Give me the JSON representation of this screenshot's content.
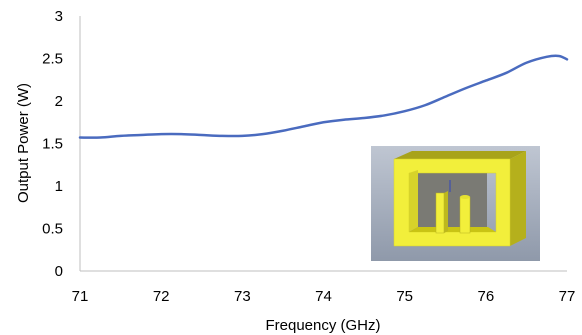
{
  "chart_data": {
    "type": "line",
    "title": "",
    "xlabel": "Frequency (GHz)",
    "ylabel": "Output Power (W)",
    "xlim": [
      71,
      77
    ],
    "ylim": [
      0,
      3
    ],
    "xticks": [
      "71",
      "72",
      "73",
      "74",
      "75",
      "76",
      "77"
    ],
    "yticks": [
      "0",
      "0.5",
      "1",
      "1.5",
      "2",
      "2.5",
      "3"
    ],
    "grid": false,
    "series": [
      {
        "color": "#4a6bbf",
        "x": [
          71,
          71.25,
          71.5,
          71.75,
          72,
          72.25,
          72.5,
          72.75,
          73,
          73.25,
          73.5,
          73.75,
          74,
          74.25,
          74.5,
          74.75,
          75,
          75.25,
          75.5,
          75.75,
          76,
          76.25,
          76.5,
          76.75,
          76.9,
          77
        ],
        "y": [
          1.57,
          1.57,
          1.59,
          1.6,
          1.61,
          1.61,
          1.6,
          1.59,
          1.59,
          1.61,
          1.65,
          1.7,
          1.75,
          1.78,
          1.8,
          1.83,
          1.88,
          1.95,
          2.05,
          2.15,
          2.24,
          2.33,
          2.45,
          2.52,
          2.53,
          2.49
        ]
      }
    ]
  },
  "inset": {
    "description_icon": "resonator-cavity-3d-icon",
    "colors": {
      "frame": "#f2ef3b",
      "frame_dark": "#c9c414",
      "background_top": "#bfc6d2",
      "background_bottom": "#8f99aa",
      "back_wall": "#6c6c68",
      "probe": "#3d4fb0"
    }
  }
}
